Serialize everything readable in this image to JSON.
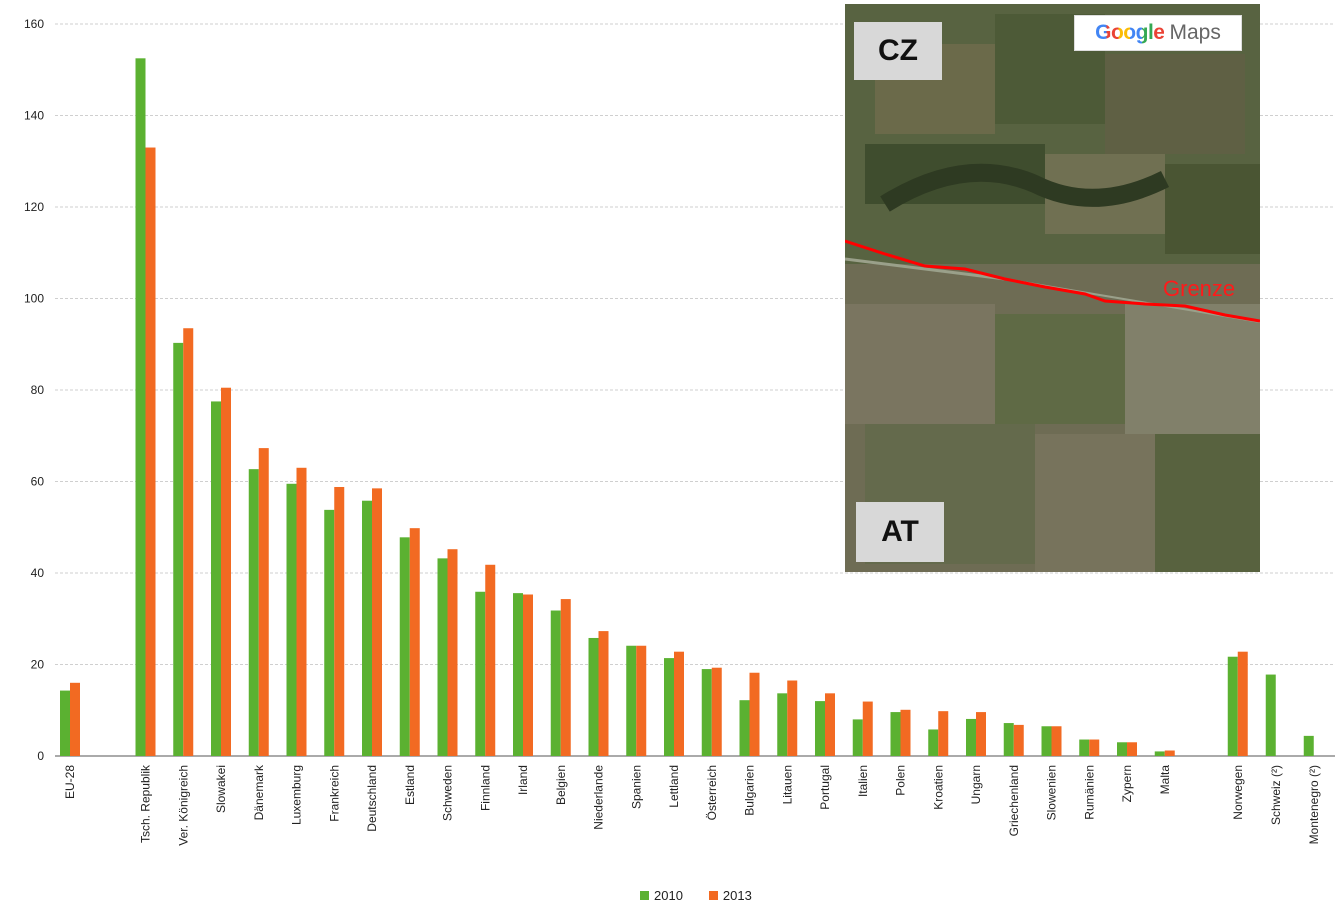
{
  "chart_data": {
    "type": "bar",
    "ylim": [
      0,
      160
    ],
    "yticks": [
      0,
      20,
      40,
      60,
      80,
      100,
      120,
      140,
      160
    ],
    "grid": true,
    "legend_position": "bottom-center",
    "categories": [
      "EU-28",
      "Tsch. Republik",
      "Ver. Königreich",
      "Slowakei",
      "Dänemark",
      "Luxemburg",
      "Frankreich",
      "Deutschland",
      "Estland",
      "Schweden",
      "Finnland",
      "Irland",
      "Belgien",
      "Niederlande",
      "Spanien",
      "Lettland",
      "Österreich",
      "Bulgarien",
      "Litauen",
      "Portugal",
      "Italien",
      "Polen",
      "Kroatien",
      "Ungarn",
      "Griechenland",
      "Slowenien",
      "Rumänien",
      "Zypern",
      "Malta",
      "Norwegen",
      "Schweiz (²)",
      "Montenegro (²)"
    ],
    "series": [
      {
        "name": "2010",
        "color": "#5bb131",
        "values": [
          14.3,
          152.5,
          90.3,
          77.5,
          62.7,
          59.5,
          53.8,
          55.8,
          47.8,
          43.2,
          35.9,
          35.6,
          31.8,
          25.8,
          24.1,
          21.4,
          19.0,
          12.2,
          13.7,
          12.0,
          8.0,
          9.6,
          5.8,
          8.1,
          7.2,
          6.5,
          3.6,
          3.0,
          1.0,
          21.7,
          17.8,
          4.4
        ]
      },
      {
        "name": "2013",
        "color": "#f26a22",
        "values": [
          16.0,
          133.0,
          93.5,
          80.5,
          67.3,
          63.0,
          58.8,
          58.5,
          49.8,
          45.2,
          41.8,
          35.3,
          34.3,
          27.3,
          24.1,
          22.8,
          19.3,
          18.2,
          16.5,
          13.7,
          11.9,
          10.1,
          9.8,
          9.6,
          6.8,
          6.5,
          3.6,
          3.0,
          1.2,
          22.8,
          null,
          null
        ]
      }
    ]
  },
  "legend": {
    "items": [
      "2010",
      "2013"
    ]
  },
  "inset": {
    "badge_top": "CZ",
    "badge_bottom": "AT",
    "logo_google": "Google",
    "logo_maps": "Maps",
    "border_label": "Grenze",
    "border_color": "#ff0000"
  }
}
